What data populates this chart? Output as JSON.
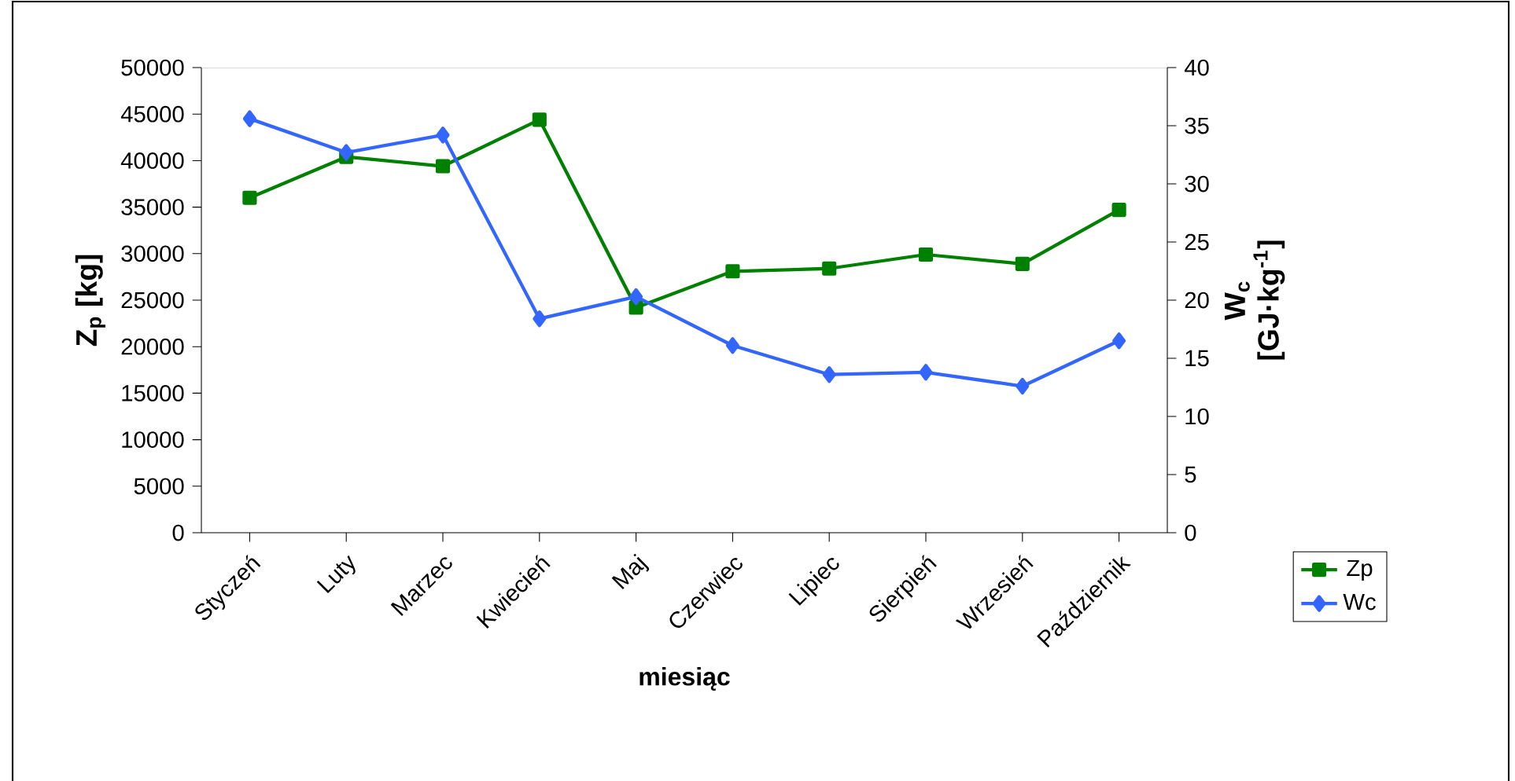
{
  "chart_data": {
    "type": "line",
    "xlabel": "miesiąc",
    "ylabel": "**Z$_{p}$ [kg]**",
    "y2label": "**W$_{c}$ [GJ·kg$^{-1}$]**",
    "categories": [
      "Styczeń",
      "Luty",
      "Marzec",
      "Kwiecień",
      "Maj",
      "Czerwiec",
      "Lipiec",
      "Sierpień",
      "Wrzesień",
      "Październik"
    ],
    "series": [
      {
        "name": "Zp",
        "color": "#008000",
        "marker": "square",
        "values": [
          36000,
          40400,
          39400,
          44400,
          24200,
          28100,
          28400,
          29900,
          28900,
          34700
        ]
      },
      {
        "name": "Wc",
        "color": "#3366ff",
        "marker": "diamond",
        "axis": "y2",
        "values": [
          35.6,
          32.7,
          34.2,
          18.4,
          20.3,
          16.1,
          13.6,
          13.8,
          12.6,
          16.5
        ]
      }
    ],
    "ylim": [
      0,
      50000
    ],
    "yticks": [
      0,
      5000,
      10000,
      15000,
      20000,
      25000,
      30000,
      35000,
      40000,
      45000,
      50000
    ],
    "y2lim": [
      0,
      40
    ],
    "y2ticks": [
      0,
      5,
      10,
      15,
      20,
      25,
      30,
      35,
      40
    ],
    "grid": false,
    "legend": "right",
    "line_style": "solid"
  }
}
